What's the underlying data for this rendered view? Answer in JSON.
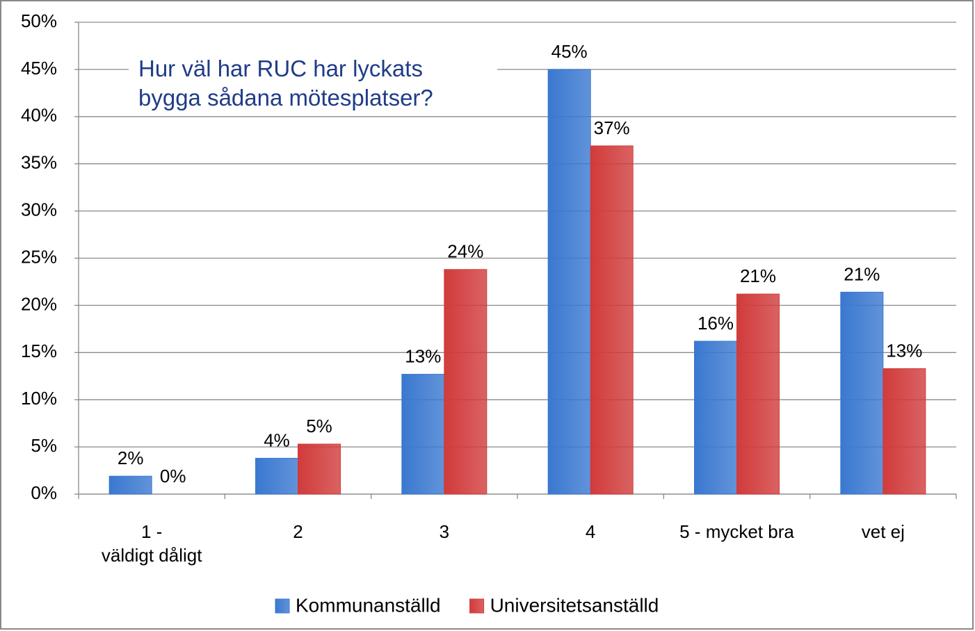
{
  "chart_data": {
    "type": "bar",
    "title": "Hur väl har RUC har lyckats\nbygga sådana mötesplatser?",
    "categories": [
      "1 -\nväldigt dåligt",
      "2",
      "3",
      "4",
      "5 - mycket bra",
      "vet ej"
    ],
    "series": [
      {
        "name": "Kommunanställd",
        "color": "#3a78d0",
        "values": [
          1.9,
          3.8,
          12.7,
          45.0,
          16.2,
          21.4
        ],
        "value_labels": [
          "2%",
          "4%",
          "13%",
          "45%",
          "16%",
          "21%"
        ]
      },
      {
        "name": "Universitetsanställd",
        "color": "#d13b3b",
        "values": [
          0,
          5.3,
          23.8,
          36.9,
          21.2,
          13.3
        ],
        "value_labels": [
          "0%",
          "5%",
          "24%",
          "37%",
          "21%",
          "13%"
        ]
      }
    ],
    "ylim": [
      0,
      50
    ],
    "yticks": [
      {
        "value": 0,
        "label": "0%"
      },
      {
        "value": 5,
        "label": "5%"
      },
      {
        "value": 10,
        "label": "10%"
      },
      {
        "value": 15,
        "label": "15%"
      },
      {
        "value": 20,
        "label": "20%"
      },
      {
        "value": 25,
        "label": "25%"
      },
      {
        "value": 30,
        "label": "30%"
      },
      {
        "value": 35,
        "label": "35%"
      },
      {
        "value": 40,
        "label": "40%"
      },
      {
        "value": 45,
        "label": "45%"
      },
      {
        "value": 50,
        "label": "50%"
      }
    ],
    "grid": true,
    "legend": "bottom"
  }
}
